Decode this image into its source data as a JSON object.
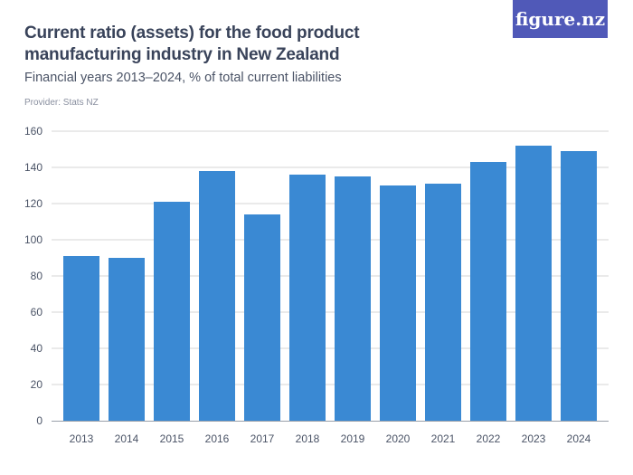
{
  "header": {
    "title": "Current ratio (assets) for the food product manufacturing industry in New Zealand",
    "subtitle": "Financial years 2013–2024, % of total current liabilities",
    "provider": "Provider: Stats NZ",
    "logo": "figure.nz"
  },
  "chart_data": {
    "type": "bar",
    "categories": [
      "2013",
      "2014",
      "2015",
      "2016",
      "2017",
      "2018",
      "2019",
      "2020",
      "2021",
      "2022",
      "2023",
      "2024"
    ],
    "values": [
      91,
      90,
      121,
      138,
      114,
      136,
      135,
      130,
      131,
      143,
      152,
      149
    ],
    "ylim": [
      0,
      160
    ],
    "yticks": [
      0,
      20,
      40,
      60,
      80,
      100,
      120,
      140,
      160
    ],
    "grid": true,
    "bar_color": "#3a89d3",
    "xlabel": "",
    "ylabel": ""
  }
}
